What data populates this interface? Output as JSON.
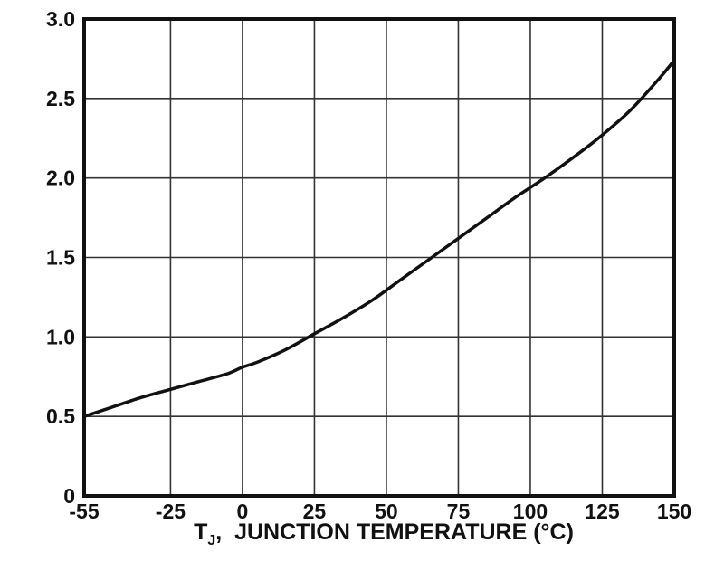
{
  "chart_data": {
    "type": "line",
    "title": "",
    "xlabel": {
      "main": "T",
      "sub": "J",
      "rest": ",  JUNCTION TEMPERATURE (°C)"
    },
    "ylabel": "",
    "xlim": [
      -55,
      150
    ],
    "ylim": [
      0,
      3.0
    ],
    "grid": true,
    "x_ticks": [
      -55,
      -25,
      0,
      25,
      50,
      75,
      100,
      125,
      150
    ],
    "x_tick_labels": [
      "-55",
      "-25",
      "0",
      "25",
      "50",
      "75",
      "100",
      "125",
      "150"
    ],
    "y_ticks": [
      0,
      0.5,
      1.0,
      1.5,
      2.0,
      2.5,
      3.0
    ],
    "y_tick_labels": [
      "0",
      "0.5",
      "1.0",
      "1.5",
      "2.0",
      "2.5",
      "3.0"
    ],
    "series": [
      {
        "x": [
          -55,
          -45,
          -35,
          -25,
          -15,
          -5,
          0,
          5,
          15,
          25,
          35,
          45,
          55,
          65,
          75,
          85,
          95,
          105,
          115,
          125,
          135,
          145,
          150
        ],
        "y": [
          0.5,
          0.56,
          0.62,
          0.67,
          0.72,
          0.77,
          0.81,
          0.84,
          0.92,
          1.02,
          1.12,
          1.23,
          1.36,
          1.49,
          1.62,
          1.75,
          1.88,
          2.0,
          2.13,
          2.27,
          2.43,
          2.63,
          2.74
        ]
      }
    ],
    "colors": {
      "line": "#111111",
      "grid": "#333333",
      "frame": "#111111"
    }
  }
}
